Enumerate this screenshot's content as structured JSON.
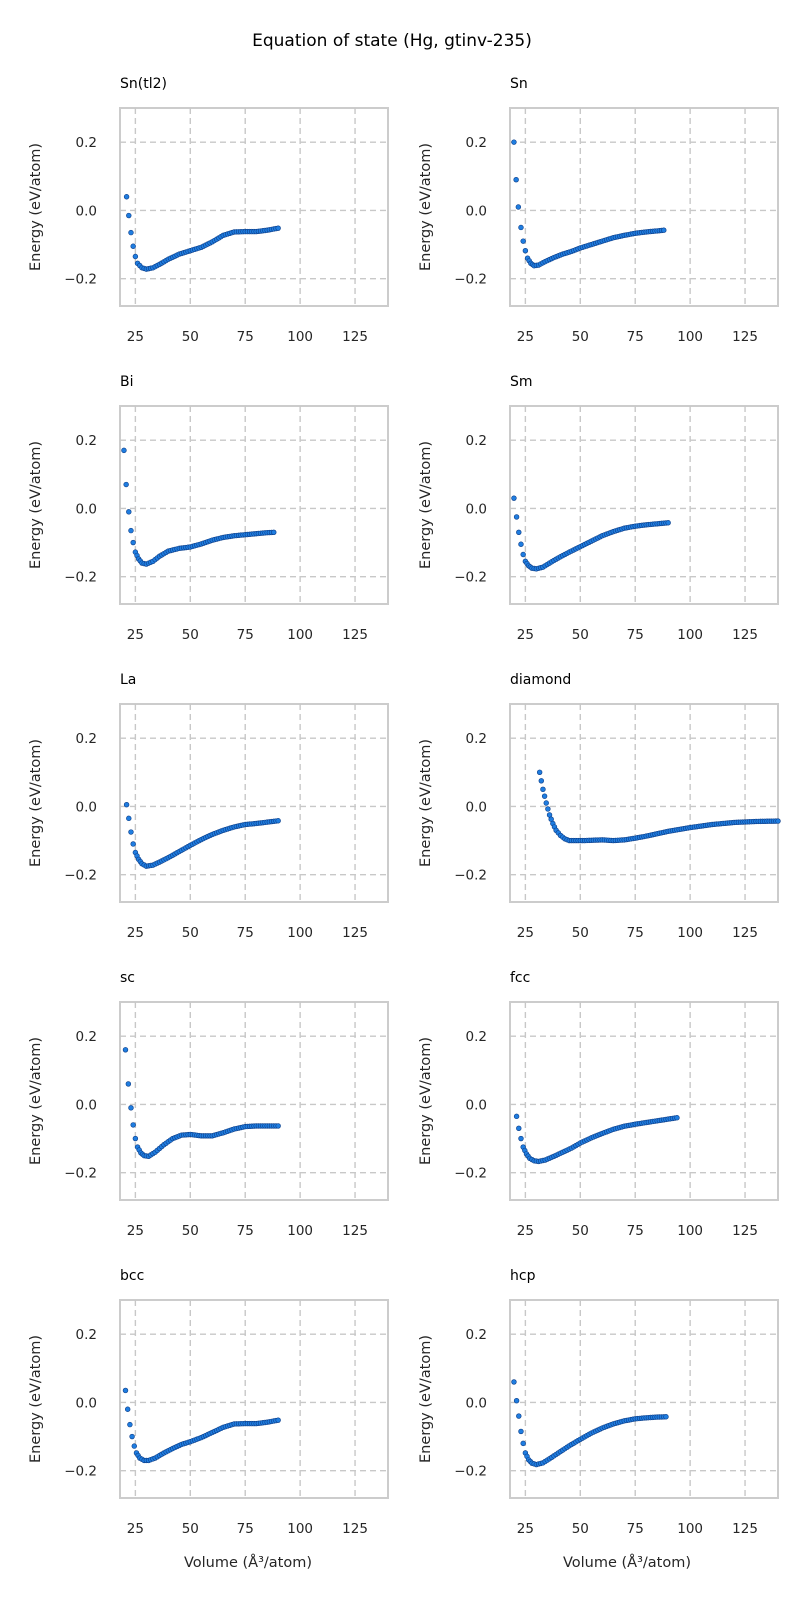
{
  "figure": {
    "title": "Equation of state (Hg, gtinv-235)",
    "xlabel": "Volume (Å³/atom)",
    "ylabel": "Energy (eV/atom)",
    "colors": {
      "marker_fill": "#1f7de0",
      "marker_edge": "#0d3f8a",
      "grid": "#c8c8c8",
      "frame": "#cccccc"
    }
  },
  "chart_data": [
    {
      "type": "scatter",
      "title": "Sn(tl2)",
      "grid": true,
      "xlim": [
        18,
        140
      ],
      "ylim": [
        -0.28,
        0.3
      ],
      "xticks": [
        25,
        50,
        75,
        100,
        125
      ],
      "yticks": [
        -0.2,
        0.0,
        0.2
      ],
      "curve": [
        [
          21,
          0.04
        ],
        [
          22,
          -0.015
        ],
        [
          23,
          -0.065
        ],
        [
          24,
          -0.105
        ],
        [
          25,
          -0.135
        ],
        [
          26,
          -0.155
        ],
        [
          28,
          -0.168
        ],
        [
          30,
          -0.172
        ],
        [
          33,
          -0.168
        ],
        [
          36,
          -0.158
        ],
        [
          40,
          -0.143
        ],
        [
          45,
          -0.128
        ],
        [
          50,
          -0.118
        ],
        [
          55,
          -0.108
        ],
        [
          60,
          -0.092
        ],
        [
          65,
          -0.073
        ],
        [
          70,
          -0.063
        ],
        [
          75,
          -0.062
        ],
        [
          80,
          -0.062
        ],
        [
          85,
          -0.058
        ],
        [
          90,
          -0.052
        ]
      ]
    },
    {
      "type": "scatter",
      "title": "Sn",
      "grid": true,
      "xlim": [
        18,
        140
      ],
      "ylim": [
        -0.28,
        0.3
      ],
      "xticks": [
        25,
        50,
        75,
        100,
        125
      ],
      "yticks": [
        -0.2,
        0.0,
        0.2
      ],
      "curve": [
        [
          19.8,
          0.2
        ],
        [
          20.8,
          0.09
        ],
        [
          21.8,
          0.01
        ],
        [
          23,
          -0.05
        ],
        [
          24,
          -0.09
        ],
        [
          25,
          -0.118
        ],
        [
          26,
          -0.14
        ],
        [
          27.5,
          -0.155
        ],
        [
          29,
          -0.162
        ],
        [
          31,
          -0.16
        ],
        [
          34,
          -0.15
        ],
        [
          38,
          -0.138
        ],
        [
          42,
          -0.128
        ],
        [
          46,
          -0.12
        ],
        [
          50,
          -0.11
        ],
        [
          55,
          -0.1
        ],
        [
          60,
          -0.09
        ],
        [
          65,
          -0.08
        ],
        [
          70,
          -0.073
        ],
        [
          75,
          -0.067
        ],
        [
          80,
          -0.063
        ],
        [
          85,
          -0.06
        ],
        [
          88,
          -0.058
        ]
      ]
    },
    {
      "type": "scatter",
      "title": "Bi",
      "grid": true,
      "xlim": [
        18,
        140
      ],
      "ylim": [
        -0.28,
        0.3
      ],
      "xticks": [
        25,
        50,
        75,
        100,
        125
      ],
      "yticks": [
        -0.2,
        0.0,
        0.2
      ],
      "curve": [
        [
          19.8,
          0.17
        ],
        [
          20.8,
          0.07
        ],
        [
          22,
          -0.01
        ],
        [
          23,
          -0.065
        ],
        [
          24,
          -0.1
        ],
        [
          25,
          -0.128
        ],
        [
          26.5,
          -0.148
        ],
        [
          28,
          -0.16
        ],
        [
          30,
          -0.163
        ],
        [
          33,
          -0.155
        ],
        [
          36,
          -0.14
        ],
        [
          40,
          -0.125
        ],
        [
          45,
          -0.117
        ],
        [
          50,
          -0.113
        ],
        [
          55,
          -0.104
        ],
        [
          60,
          -0.093
        ],
        [
          65,
          -0.085
        ],
        [
          70,
          -0.08
        ],
        [
          75,
          -0.077
        ],
        [
          80,
          -0.074
        ],
        [
          85,
          -0.071
        ],
        [
          88,
          -0.07
        ]
      ]
    },
    {
      "type": "scatter",
      "title": "Sm",
      "grid": true,
      "xlim": [
        18,
        140
      ],
      "ylim": [
        -0.28,
        0.3
      ],
      "xticks": [
        25,
        50,
        75,
        100,
        125
      ],
      "yticks": [
        -0.2,
        0.0,
        0.2
      ],
      "curve": [
        [
          19.8,
          0.03
        ],
        [
          21,
          -0.025
        ],
        [
          22,
          -0.07
        ],
        [
          23,
          -0.105
        ],
        [
          24,
          -0.135
        ],
        [
          25,
          -0.155
        ],
        [
          26.5,
          -0.168
        ],
        [
          28,
          -0.175
        ],
        [
          30,
          -0.177
        ],
        [
          33,
          -0.172
        ],
        [
          36,
          -0.16
        ],
        [
          40,
          -0.145
        ],
        [
          45,
          -0.128
        ],
        [
          50,
          -0.112
        ],
        [
          55,
          -0.096
        ],
        [
          60,
          -0.08
        ],
        [
          65,
          -0.068
        ],
        [
          70,
          -0.058
        ],
        [
          75,
          -0.052
        ],
        [
          80,
          -0.048
        ],
        [
          85,
          -0.045
        ],
        [
          90,
          -0.042
        ]
      ]
    },
    {
      "type": "scatter",
      "title": "La",
      "grid": true,
      "xlim": [
        18,
        140
      ],
      "ylim": [
        -0.28,
        0.3
      ],
      "xticks": [
        25,
        50,
        75,
        100,
        125
      ],
      "yticks": [
        -0.2,
        0.0,
        0.2
      ],
      "curve": [
        [
          21,
          0.005
        ],
        [
          22,
          -0.035
        ],
        [
          23,
          -0.075
        ],
        [
          24,
          -0.11
        ],
        [
          25,
          -0.135
        ],
        [
          26.5,
          -0.155
        ],
        [
          28,
          -0.168
        ],
        [
          30,
          -0.175
        ],
        [
          33,
          -0.172
        ],
        [
          36,
          -0.163
        ],
        [
          40,
          -0.15
        ],
        [
          45,
          -0.132
        ],
        [
          50,
          -0.114
        ],
        [
          55,
          -0.097
        ],
        [
          60,
          -0.082
        ],
        [
          65,
          -0.07
        ],
        [
          70,
          -0.06
        ],
        [
          75,
          -0.053
        ],
        [
          80,
          -0.05
        ],
        [
          85,
          -0.046
        ],
        [
          90,
          -0.042
        ]
      ]
    },
    {
      "type": "scatter",
      "title": "diamond",
      "grid": true,
      "xlim": [
        18,
        140
      ],
      "ylim": [
        -0.28,
        0.3
      ],
      "xticks": [
        25,
        50,
        75,
        100,
        125
      ],
      "yticks": [
        -0.2,
        0.0,
        0.2
      ],
      "curve": [
        [
          31.5,
          0.1
        ],
        [
          33,
          0.05
        ],
        [
          34.5,
          0.01
        ],
        [
          36,
          -0.025
        ],
        [
          37.5,
          -0.05
        ],
        [
          39,
          -0.07
        ],
        [
          41,
          -0.085
        ],
        [
          43,
          -0.095
        ],
        [
          45,
          -0.1
        ],
        [
          48,
          -0.1
        ],
        [
          52,
          -0.1
        ],
        [
          56,
          -0.099
        ],
        [
          60,
          -0.098
        ],
        [
          65,
          -0.1
        ],
        [
          70,
          -0.098
        ],
        [
          75,
          -0.093
        ],
        [
          80,
          -0.087
        ],
        [
          90,
          -0.073
        ],
        [
          100,
          -0.062
        ],
        [
          110,
          -0.053
        ],
        [
          120,
          -0.047
        ],
        [
          130,
          -0.044
        ],
        [
          140,
          -0.043
        ]
      ]
    },
    {
      "type": "scatter",
      "title": "sc",
      "grid": true,
      "xlim": [
        18,
        140
      ],
      "ylim": [
        -0.28,
        0.3
      ],
      "xticks": [
        25,
        50,
        75,
        100,
        125
      ],
      "yticks": [
        -0.2,
        0.0,
        0.2
      ],
      "curve": [
        [
          20.5,
          0.16
        ],
        [
          21.8,
          0.06
        ],
        [
          23,
          -0.01
        ],
        [
          24,
          -0.06
        ],
        [
          25,
          -0.1
        ],
        [
          26,
          -0.125
        ],
        [
          27.5,
          -0.142
        ],
        [
          29,
          -0.15
        ],
        [
          31,
          -0.152
        ],
        [
          34,
          -0.14
        ],
        [
          38,
          -0.118
        ],
        [
          42,
          -0.1
        ],
        [
          46,
          -0.09
        ],
        [
          50,
          -0.088
        ],
        [
          55,
          -0.092
        ],
        [
          60,
          -0.092
        ],
        [
          65,
          -0.083
        ],
        [
          70,
          -0.072
        ],
        [
          75,
          -0.065
        ],
        [
          80,
          -0.063
        ],
        [
          85,
          -0.063
        ],
        [
          90,
          -0.063
        ]
      ]
    },
    {
      "type": "scatter",
      "title": "fcc",
      "grid": true,
      "xlim": [
        18,
        140
      ],
      "ylim": [
        -0.28,
        0.3
      ],
      "xticks": [
        25,
        50,
        75,
        100,
        125
      ],
      "yticks": [
        -0.2,
        0.0,
        0.2
      ],
      "curve": [
        [
          21,
          -0.035
        ],
        [
          22,
          -0.07
        ],
        [
          23,
          -0.1
        ],
        [
          24,
          -0.125
        ],
        [
          25.5,
          -0.145
        ],
        [
          27,
          -0.158
        ],
        [
          29,
          -0.165
        ],
        [
          31,
          -0.167
        ],
        [
          34,
          -0.163
        ],
        [
          38,
          -0.152
        ],
        [
          42,
          -0.14
        ],
        [
          46,
          -0.128
        ],
        [
          50,
          -0.113
        ],
        [
          55,
          -0.098
        ],
        [
          60,
          -0.085
        ],
        [
          65,
          -0.073
        ],
        [
          70,
          -0.064
        ],
        [
          75,
          -0.058
        ],
        [
          80,
          -0.053
        ],
        [
          85,
          -0.048
        ],
        [
          90,
          -0.043
        ],
        [
          94,
          -0.039
        ]
      ]
    },
    {
      "type": "scatter",
      "title": "bcc",
      "grid": true,
      "xlim": [
        18,
        140
      ],
      "ylim": [
        -0.28,
        0.3
      ],
      "xticks": [
        25,
        50,
        75,
        100,
        125
      ],
      "yticks": [
        -0.2,
        0.0,
        0.2
      ],
      "curve": [
        [
          20.5,
          0.035
        ],
        [
          21.5,
          -0.02
        ],
        [
          22.5,
          -0.065
        ],
        [
          23.5,
          -0.1
        ],
        [
          24.5,
          -0.128
        ],
        [
          25.5,
          -0.148
        ],
        [
          27,
          -0.163
        ],
        [
          29,
          -0.17
        ],
        [
          31,
          -0.17
        ],
        [
          34,
          -0.163
        ],
        [
          38,
          -0.148
        ],
        [
          42,
          -0.135
        ],
        [
          46,
          -0.123
        ],
        [
          50,
          -0.115
        ],
        [
          55,
          -0.103
        ],
        [
          60,
          -0.088
        ],
        [
          65,
          -0.073
        ],
        [
          70,
          -0.063
        ],
        [
          75,
          -0.062
        ],
        [
          80,
          -0.062
        ],
        [
          85,
          -0.058
        ],
        [
          90,
          -0.052
        ]
      ]
    },
    {
      "type": "scatter",
      "title": "hcp",
      "grid": true,
      "xlim": [
        18,
        140
      ],
      "ylim": [
        -0.28,
        0.3
      ],
      "xticks": [
        25,
        50,
        75,
        100,
        125
      ],
      "yticks": [
        -0.2,
        0.0,
        0.2
      ],
      "curve": [
        [
          19.8,
          0.06
        ],
        [
          21,
          0.005
        ],
        [
          22,
          -0.04
        ],
        [
          23,
          -0.085
        ],
        [
          24,
          -0.12
        ],
        [
          25,
          -0.148
        ],
        [
          26.5,
          -0.168
        ],
        [
          28,
          -0.178
        ],
        [
          30,
          -0.182
        ],
        [
          33,
          -0.177
        ],
        [
          36,
          -0.165
        ],
        [
          40,
          -0.148
        ],
        [
          45,
          -0.127
        ],
        [
          50,
          -0.108
        ],
        [
          55,
          -0.09
        ],
        [
          60,
          -0.075
        ],
        [
          65,
          -0.063
        ],
        [
          70,
          -0.054
        ],
        [
          75,
          -0.048
        ],
        [
          80,
          -0.045
        ],
        [
          85,
          -0.043
        ],
        [
          89,
          -0.042
        ]
      ]
    }
  ]
}
